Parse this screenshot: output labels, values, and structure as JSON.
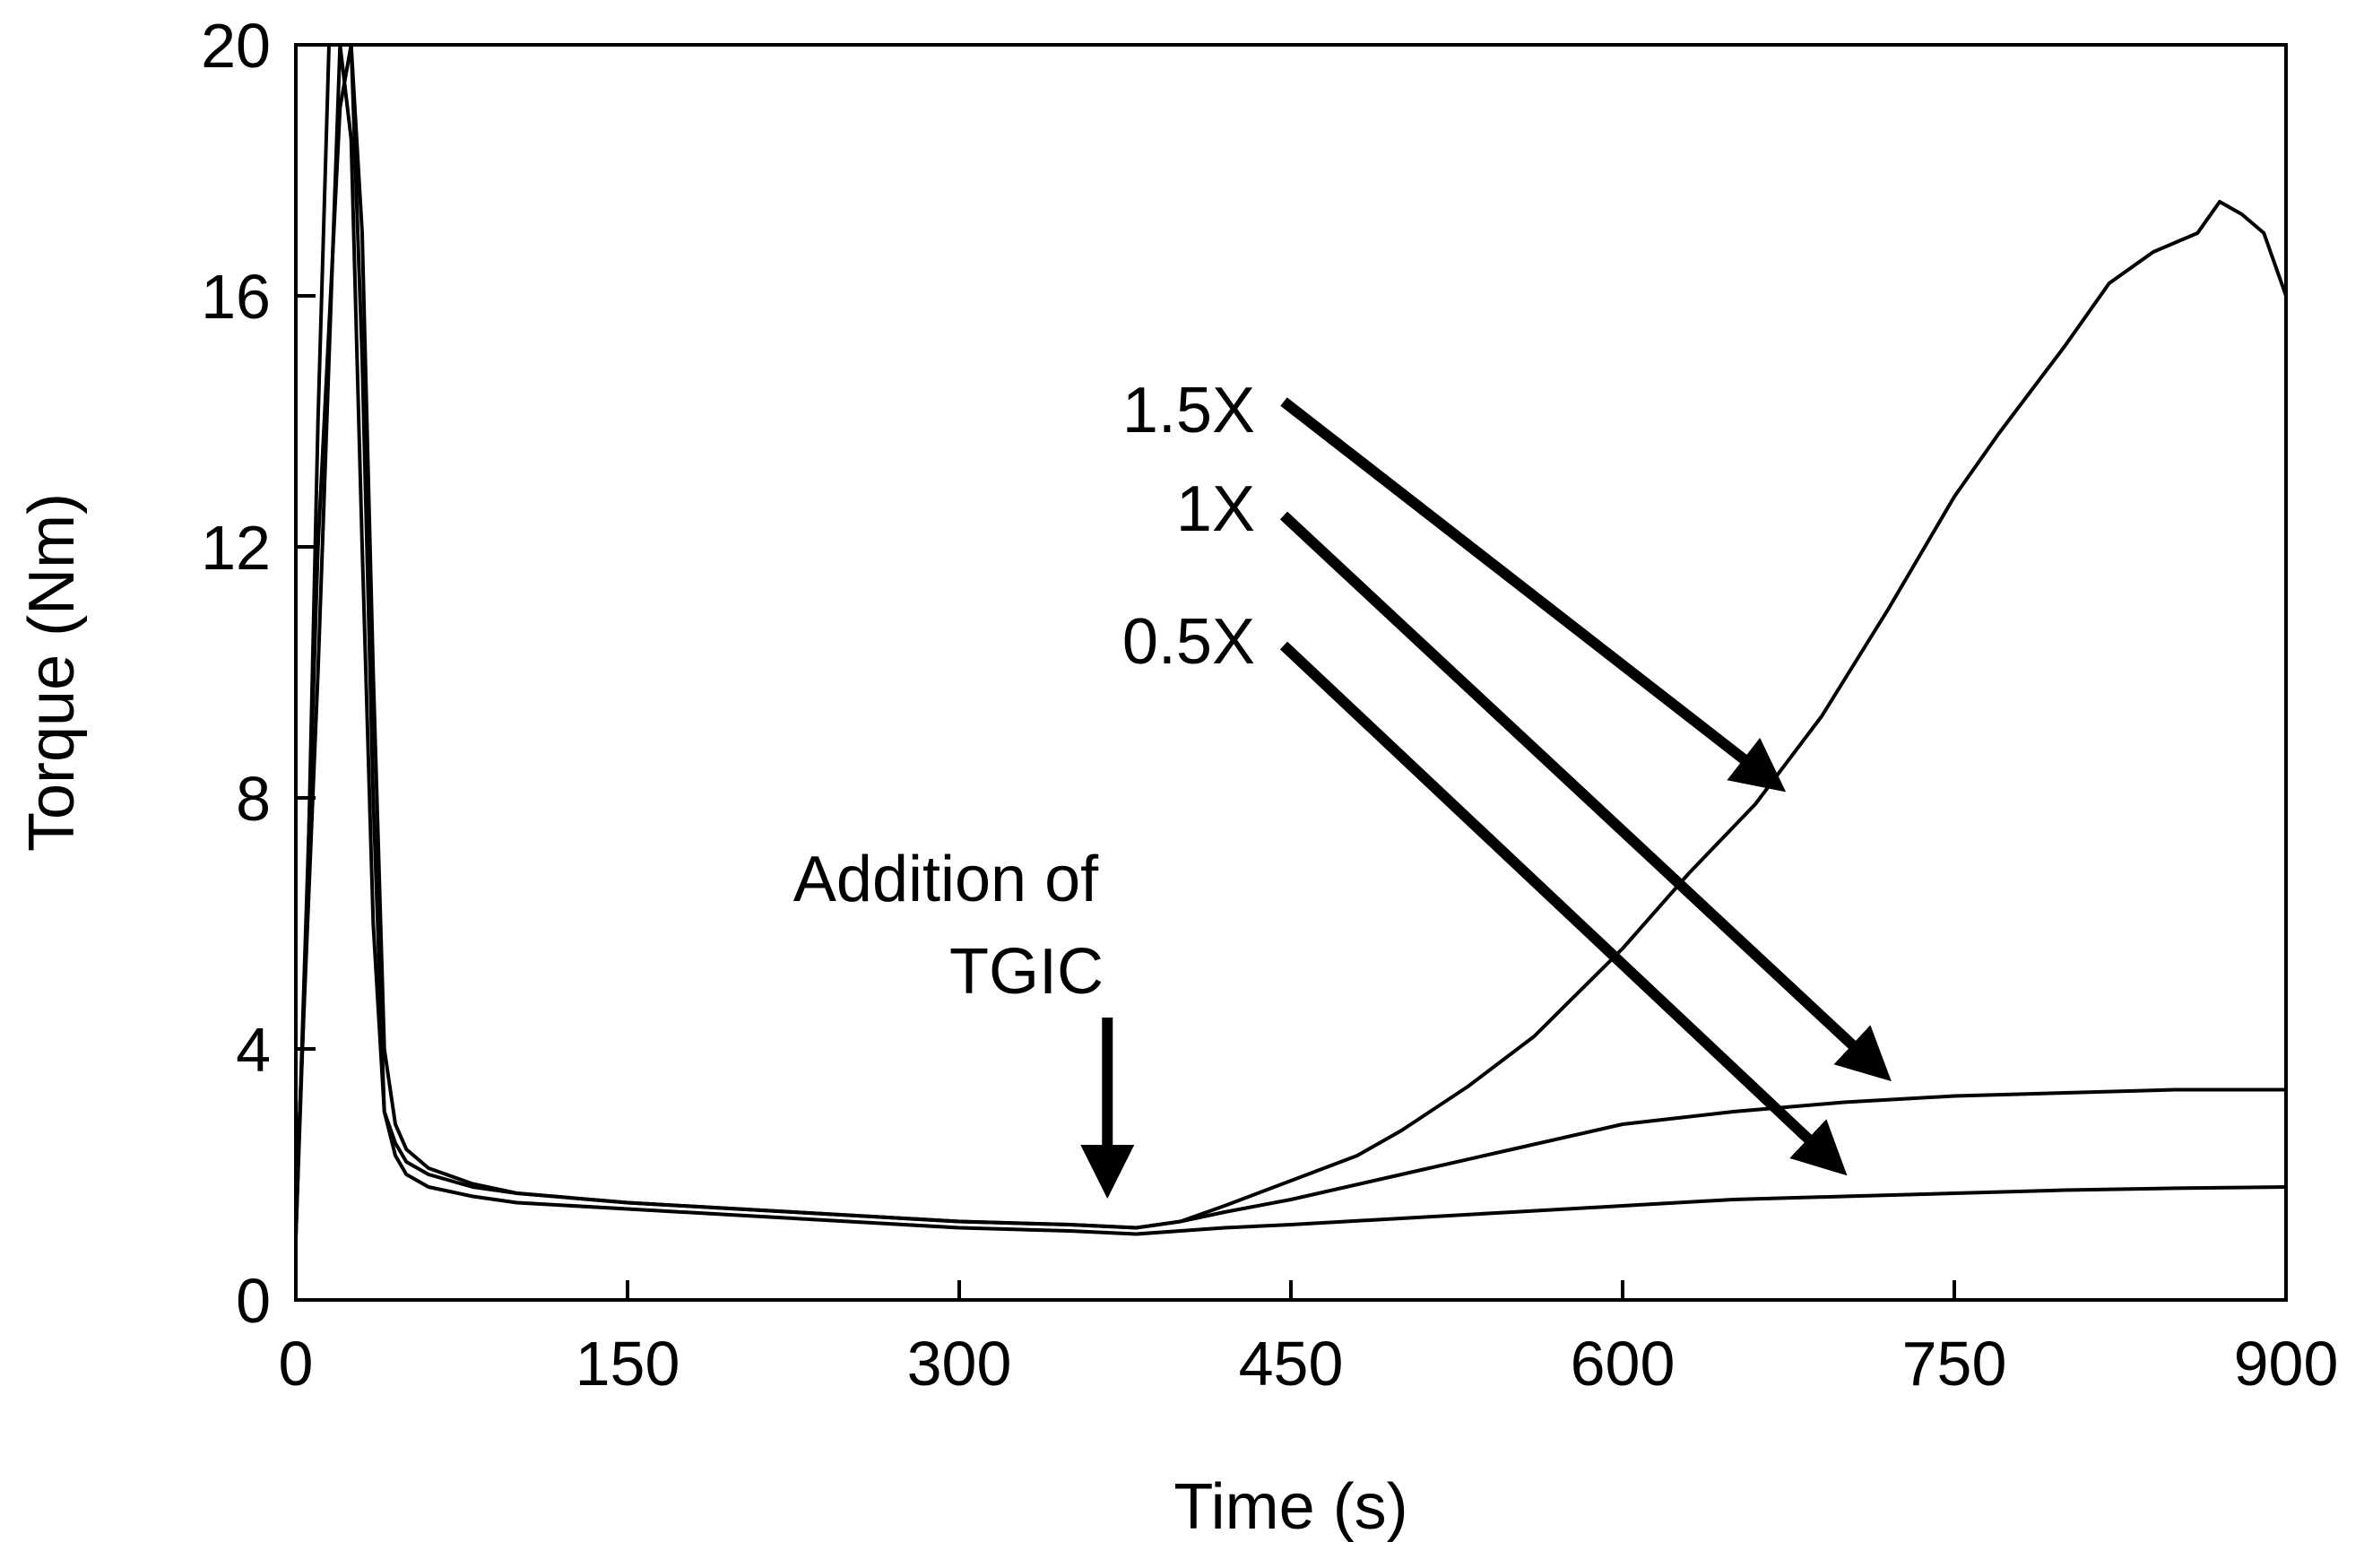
{
  "chart_data": {
    "type": "line",
    "title": "",
    "xlabel": "Time (s)",
    "ylabel": "Torque (Nm)",
    "xlim": [
      0,
      900
    ],
    "ylim": [
      0,
      20
    ],
    "xticks": [
      0,
      150,
      300,
      450,
      600,
      750,
      900
    ],
    "yticks": [
      0,
      4,
      8,
      12,
      16,
      20
    ],
    "grid": false,
    "legend": "none",
    "series": [
      {
        "name": "1.5X",
        "color": "#000000",
        "x": [
          0,
          5,
          10,
          15,
          20,
          25,
          30,
          35,
          40,
          45,
          50,
          60,
          80,
          100,
          150,
          200,
          250,
          300,
          350,
          380,
          400,
          420,
          450,
          480,
          500,
          530,
          560,
          600,
          630,
          660,
          690,
          720,
          750,
          770,
          800,
          820,
          840,
          860,
          870,
          880,
          890,
          900
        ],
        "y": [
          1.0,
          6.0,
          14.0,
          20.0,
          20.0,
          18.5,
          12.0,
          6.0,
          3.0,
          2.5,
          2.2,
          2.0,
          1.8,
          1.7,
          1.55,
          1.45,
          1.35,
          1.25,
          1.2,
          1.15,
          1.25,
          1.5,
          1.9,
          2.3,
          2.7,
          3.4,
          4.2,
          5.6,
          6.8,
          7.9,
          9.3,
          11.0,
          12.8,
          13.8,
          15.2,
          16.2,
          16.7,
          17.0,
          17.5,
          17.3,
          17.0,
          16.0
        ]
      },
      {
        "name": "1X",
        "color": "#000000",
        "x": [
          0,
          10,
          20,
          25,
          30,
          35,
          40,
          45,
          50,
          60,
          80,
          100,
          150,
          200,
          250,
          300,
          350,
          380,
          400,
          420,
          450,
          500,
          550,
          600,
          650,
          700,
          750,
          800,
          850,
          900
        ],
        "y": [
          1.5,
          10.0,
          20.0,
          20.0,
          17.0,
          10.0,
          4.0,
          2.8,
          2.4,
          2.1,
          1.85,
          1.7,
          1.55,
          1.45,
          1.35,
          1.25,
          1.2,
          1.15,
          1.25,
          1.4,
          1.6,
          2.0,
          2.4,
          2.8,
          3.0,
          3.15,
          3.25,
          3.3,
          3.35,
          3.35
        ]
      },
      {
        "name": "0.5X",
        "color": "#000000",
        "x": [
          0,
          10,
          20,
          25,
          30,
          35,
          40,
          45,
          50,
          60,
          80,
          100,
          150,
          200,
          250,
          300,
          350,
          380,
          400,
          420,
          450,
          500,
          550,
          600,
          650,
          700,
          750,
          800,
          850,
          900
        ],
        "y": [
          1.0,
          12.0,
          19.0,
          20.0,
          15.0,
          8.0,
          3.0,
          2.3,
          2.0,
          1.8,
          1.65,
          1.55,
          1.45,
          1.35,
          1.25,
          1.15,
          1.1,
          1.05,
          1.1,
          1.15,
          1.2,
          1.3,
          1.4,
          1.5,
          1.6,
          1.65,
          1.7,
          1.75,
          1.78,
          1.8
        ]
      }
    ],
    "annotations": [
      {
        "id": "tgic",
        "lines": [
          "Addition of",
          "TGIC"
        ],
        "arrow_at_x": 367,
        "arrow_tip_y": 1.5
      },
      {
        "id": "label-15x",
        "text": "1.5X",
        "arrow_target": [
          670,
          8.2
        ]
      },
      {
        "id": "label-1x",
        "text": "1X",
        "arrow_target": [
          718,
          3.6
        ]
      },
      {
        "id": "label-05x",
        "text": "0.5X",
        "arrow_target": [
          698,
          2.1
        ]
      }
    ]
  }
}
